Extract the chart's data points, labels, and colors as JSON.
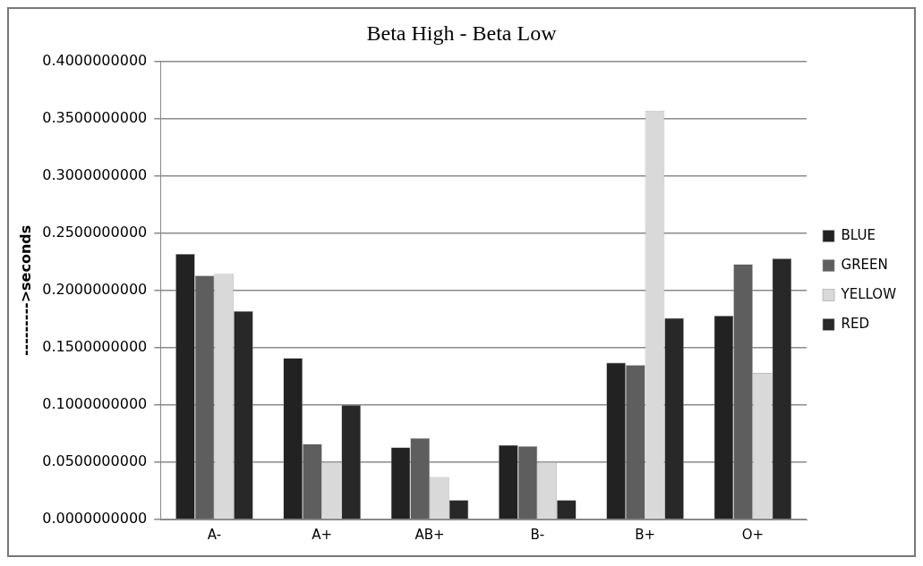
{
  "chart_data": {
    "type": "bar",
    "title": "Beta High - Beta Low",
    "ylabel": "--------->seconds",
    "categories": [
      "A-",
      "A+",
      "AB+",
      "B-",
      "B+",
      "O+"
    ],
    "series": [
      {
        "name": "BLUE",
        "color": "#222222",
        "values": [
          0.232,
          0.141,
          0.063,
          0.065,
          0.137,
          0.178
        ]
      },
      {
        "name": "GREEN",
        "color": "#5e5e5e",
        "values": [
          0.213,
          0.066,
          0.071,
          0.064,
          0.135,
          0.223
        ]
      },
      {
        "name": "YELLOW",
        "color": "#d9d9d9",
        "values": [
          0.215,
          0.05,
          0.037,
          0.05,
          0.357,
          0.128
        ]
      },
      {
        "name": "RED",
        "color": "#282828",
        "values": [
          0.182,
          0.1,
          0.017,
          0.017,
          0.176,
          0.228
        ]
      }
    ],
    "ylim": [
      0,
      0.4
    ],
    "yticks": [
      {
        "value": 0,
        "label": "0.0000000000"
      },
      {
        "value": 0.05,
        "label": "0.0500000000"
      },
      {
        "value": 0.1,
        "label": "0.1000000000"
      },
      {
        "value": 0.15,
        "label": "0.1500000000"
      },
      {
        "value": 0.2,
        "label": "0.2000000000"
      },
      {
        "value": 0.25,
        "label": "0.2500000000"
      },
      {
        "value": 0.3,
        "label": "0.3000000000"
      },
      {
        "value": 0.35,
        "label": "0.3500000000"
      },
      {
        "value": 0.4,
        "label": "0.4000000000"
      }
    ],
    "grid": "y",
    "legend": "right"
  }
}
